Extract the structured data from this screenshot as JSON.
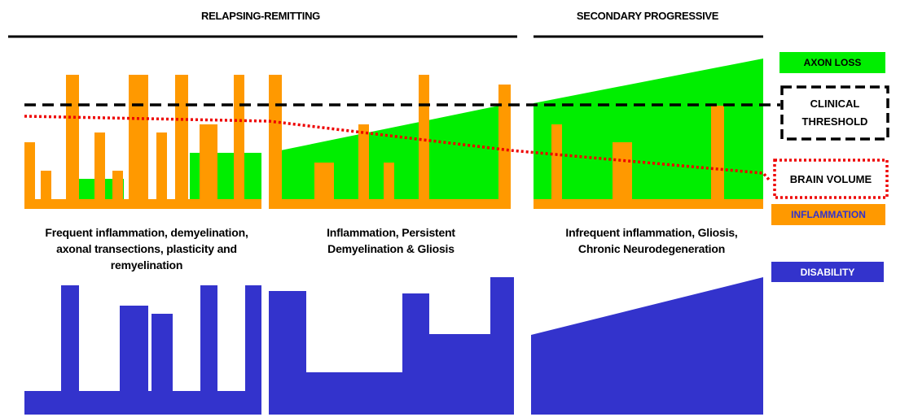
{
  "phases": {
    "relapsing_remitting": "RELAPSING-REMITTING",
    "secondary_progressive": "SECONDARY PROGRESSIVE"
  },
  "descriptions": {
    "panel1": [
      "Frequent inflammation, demyelination,",
      "axonal transections, plasticity and",
      "remyelination"
    ],
    "panel2": [
      "Inflammation, Persistent",
      "Demyelination & Gliosis"
    ],
    "panel3": [
      "Infrequent inflammation, Gliosis,",
      "Chronic Neurodegeneration"
    ]
  },
  "legend": {
    "axon_loss": "AXON LOSS",
    "clinical_threshold": [
      "CLINICAL",
      "THRESHOLD"
    ],
    "brain_volume": "BRAIN VOLUME",
    "inflammation": "INFLAMMATION",
    "disability": "DISABILITY"
  },
  "colors": {
    "axon_loss": "#00ee00",
    "inflammation": "#ff9900",
    "disability": "#3333cc",
    "brain_volume": "#ee0000",
    "threshold": "#000000"
  }
}
